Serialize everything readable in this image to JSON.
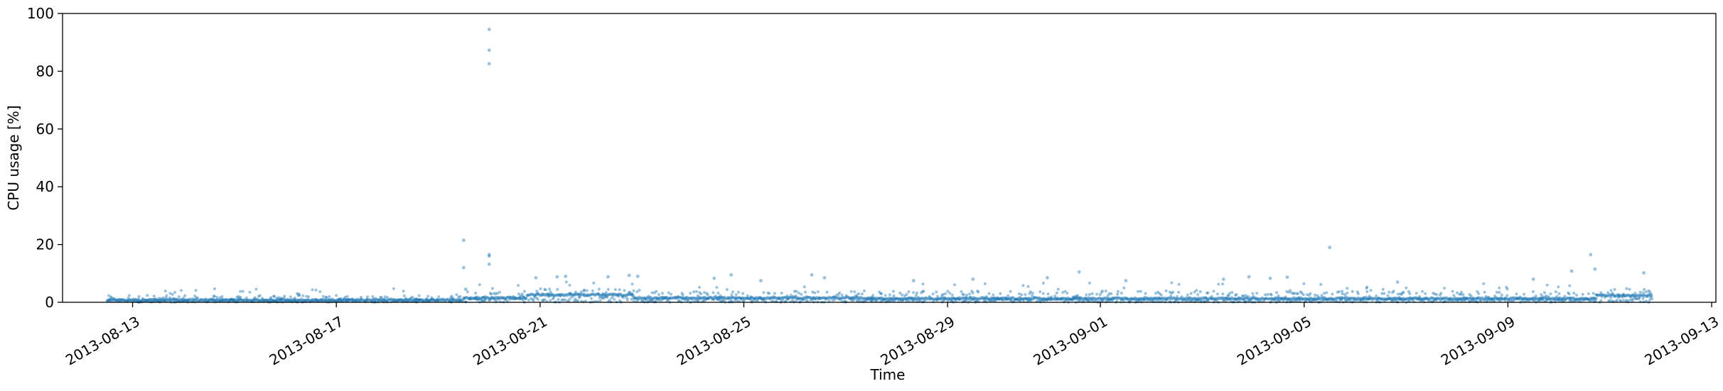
{
  "chart_data": {
    "type": "scatter",
    "title": "",
    "xlabel": "Time",
    "ylabel": "CPU usage [%]",
    "xlim": [
      "2013-08-11T15:00",
      "2013-09-13T02:00"
    ],
    "ylim": [
      0,
      100
    ],
    "x_ticks": [
      "2013-08-13",
      "2013-08-17",
      "2013-08-21",
      "2013-08-25",
      "2013-08-29",
      "2013-09-01",
      "2013-09-05",
      "2013-09-09",
      "2013-09-13"
    ],
    "y_ticks": [
      0,
      20,
      40,
      60,
      80,
      100
    ],
    "x_tick_rotation_deg": 30,
    "grid": false,
    "legend": "none",
    "marker_color": "#1f77b4",
    "marker_alpha": 0.45,
    "x_range_of_data": [
      "2013-08-12T12:00",
      "2013-09-11T20:00"
    ],
    "baseline_segments": [
      {
        "start": "2013-08-12T12:00",
        "end": "2013-08-19T12:00",
        "typical": 0.8,
        "spread": 1.0
      },
      {
        "start": "2013-08-19T12:00",
        "end": "2013-08-20T18:00",
        "typical": 1.5,
        "spread": 1.5
      },
      {
        "start": "2013-08-20T18:00",
        "end": "2013-08-22T20:00",
        "typical": 2.6,
        "spread": 1.3
      },
      {
        "start": "2013-08-22T20:00",
        "end": "2013-08-27T12:00",
        "typical": 1.5,
        "spread": 1.5
      },
      {
        "start": "2013-08-27T12:00",
        "end": "2013-09-10T00:00",
        "typical": 1.3,
        "spread": 1.6
      },
      {
        "start": "2013-09-10T00:00",
        "end": "2013-09-10T18:00",
        "typical": 1.2,
        "spread": 1.4
      },
      {
        "start": "2013-09-10T18:00",
        "end": "2013-09-11T20:00",
        "typical": 2.4,
        "spread": 1.5
      }
    ],
    "outliers": [
      {
        "x": "2013-08-20T00:00",
        "y": 94.5
      },
      {
        "x": "2013-08-20T00:00",
        "y": 87.3
      },
      {
        "x": "2013-08-20T00:00",
        "y": 82.6
      },
      {
        "x": "2013-08-20T00:00",
        "y": 16.5
      },
      {
        "x": "2013-08-20T00:00",
        "y": 16.0
      },
      {
        "x": "2013-08-20T00:00",
        "y": 13.2
      },
      {
        "x": "2013-08-19T12:00",
        "y": 21.5
      },
      {
        "x": "2013-08-19T12:00",
        "y": 12.0
      },
      {
        "x": "2013-08-19T13:00",
        "y": 4.5
      },
      {
        "x": "2013-08-20T22:00",
        "y": 8.5
      },
      {
        "x": "2013-08-21T08:00",
        "y": 8.8
      },
      {
        "x": "2013-08-21T12:00",
        "y": 9.0
      },
      {
        "x": "2013-08-22T08:00",
        "y": 8.8
      },
      {
        "x": "2013-08-22T18:00",
        "y": 9.3
      },
      {
        "x": "2013-08-22T22:00",
        "y": 9.0
      },
      {
        "x": "2013-08-24T10:00",
        "y": 8.3
      },
      {
        "x": "2013-08-24T18:00",
        "y": 9.5
      },
      {
        "x": "2013-08-25T08:00",
        "y": 7.5
      },
      {
        "x": "2013-08-26T08:00",
        "y": 9.5
      },
      {
        "x": "2013-08-26T14:00",
        "y": 8.5
      },
      {
        "x": "2013-08-28T08:00",
        "y": 7.5
      },
      {
        "x": "2013-08-29T12:00",
        "y": 8.0
      },
      {
        "x": "2013-08-30T23:00",
        "y": 8.5
      },
      {
        "x": "2013-08-31T14:00",
        "y": 10.5
      },
      {
        "x": "2013-09-01T12:00",
        "y": 7.5
      },
      {
        "x": "2013-09-03T10:00",
        "y": 8.0
      },
      {
        "x": "2013-09-03T22:00",
        "y": 8.8
      },
      {
        "x": "2013-09-04T08:00",
        "y": 8.3
      },
      {
        "x": "2013-09-04T16:00",
        "y": 8.7
      },
      {
        "x": "2013-09-05T12:00",
        "y": 19.0
      },
      {
        "x": "2013-09-06T20:00",
        "y": 7.0
      },
      {
        "x": "2013-09-09T12:00",
        "y": 8.0
      },
      {
        "x": "2013-09-10T06:00",
        "y": 10.8
      },
      {
        "x": "2013-09-10T15:00",
        "y": 16.5
      },
      {
        "x": "2013-09-10T17:00",
        "y": 11.5
      },
      {
        "x": "2013-09-11T16:00",
        "y": 10.2
      }
    ]
  }
}
